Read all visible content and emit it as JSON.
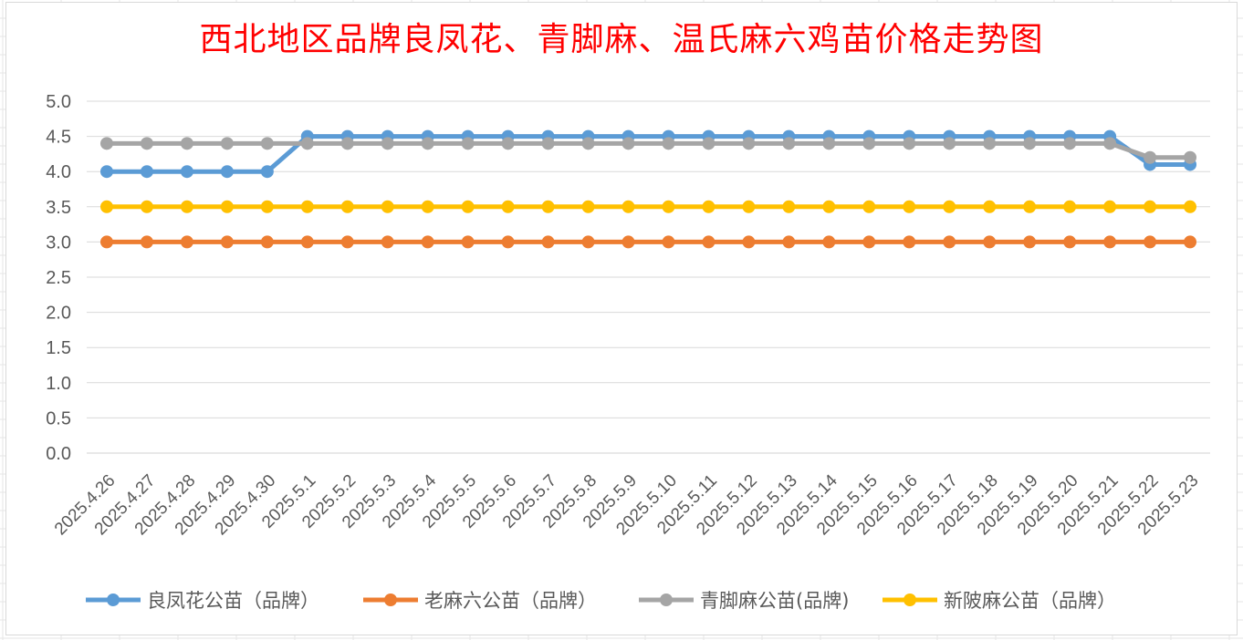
{
  "chart_data": {
    "type": "line",
    "title": "西北地区品牌良凤花、青脚麻、温氏麻六鸡苗价格走势图",
    "xlabel": "",
    "ylabel": "",
    "ylim": [
      0,
      5
    ],
    "yticks": [
      "0.0",
      "0.5",
      "1.0",
      "1.5",
      "2.0",
      "2.5",
      "3.0",
      "3.5",
      "4.0",
      "4.5",
      "5.0"
    ],
    "grid": true,
    "legend_position": "bottom",
    "categories": [
      "2025.4.26",
      "2025.4.27",
      "2025.4.28",
      "2025.4.29",
      "2025.4.30",
      "2025.5.1",
      "2025.5.2",
      "2025.5.3",
      "2025.5.4",
      "2025.5.5",
      "2025.5.6",
      "2025.5.7",
      "2025.5.8",
      "2025.5.9",
      "2025.5.10",
      "2025.5.11",
      "2025.5.12",
      "2025.5.13",
      "2025.5.14",
      "2025.5.15",
      "2025.5.16",
      "2025.5.17",
      "2025.5.18",
      "2025.5.19",
      "2025.5.20",
      "2025.5.21",
      "2025.5.22",
      "2025.5.23"
    ],
    "series": [
      {
        "name": "良凤花公苗（品牌）",
        "color": "#5b9bd5",
        "values": [
          4.0,
          4.0,
          4.0,
          4.0,
          4.0,
          4.5,
          4.5,
          4.5,
          4.5,
          4.5,
          4.5,
          4.5,
          4.5,
          4.5,
          4.5,
          4.5,
          4.5,
          4.5,
          4.5,
          4.5,
          4.5,
          4.5,
          4.5,
          4.5,
          4.5,
          4.5,
          4.1,
          4.1
        ]
      },
      {
        "name": "老麻六公苗（品牌）",
        "color": "#ed7d31",
        "values": [
          3.0,
          3.0,
          3.0,
          3.0,
          3.0,
          3.0,
          3.0,
          3.0,
          3.0,
          3.0,
          3.0,
          3.0,
          3.0,
          3.0,
          3.0,
          3.0,
          3.0,
          3.0,
          3.0,
          3.0,
          3.0,
          3.0,
          3.0,
          3.0,
          3.0,
          3.0,
          3.0,
          3.0
        ]
      },
      {
        "name": "青脚麻公苗(品牌)",
        "color": "#a5a5a5",
        "values": [
          4.4,
          4.4,
          4.4,
          4.4,
          4.4,
          4.4,
          4.4,
          4.4,
          4.4,
          4.4,
          4.4,
          4.4,
          4.4,
          4.4,
          4.4,
          4.4,
          4.4,
          4.4,
          4.4,
          4.4,
          4.4,
          4.4,
          4.4,
          4.4,
          4.4,
          4.4,
          4.2,
          4.2
        ]
      },
      {
        "name": "新陂麻公苗（品牌）",
        "color": "#ffc000",
        "values": [
          3.5,
          3.5,
          3.5,
          3.5,
          3.5,
          3.5,
          3.5,
          3.5,
          3.5,
          3.5,
          3.5,
          3.5,
          3.5,
          3.5,
          3.5,
          3.5,
          3.5,
          3.5,
          3.5,
          3.5,
          3.5,
          3.5,
          3.5,
          3.5,
          3.5,
          3.5,
          3.5,
          3.5
        ]
      }
    ]
  }
}
